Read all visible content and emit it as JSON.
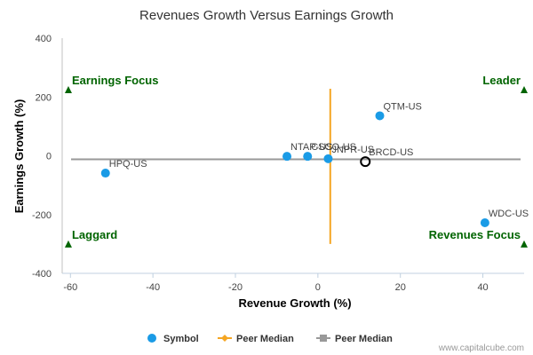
{
  "chart_data": {
    "type": "scatter",
    "title": "Revenues Growth Versus Earnings Growth",
    "xlabel": "Revenue Growth (%)",
    "ylabel": "Earnings Growth (%)",
    "xlim": [
      -62,
      50
    ],
    "ylim": [
      -400,
      400
    ],
    "xticks": [
      -60,
      -40,
      -20,
      0,
      20,
      40
    ],
    "yticks": [
      -400,
      -200,
      0,
      200,
      400
    ],
    "grid": false,
    "legend_position": "bottom",
    "series": [
      {
        "name": "Symbol",
        "color": "#1a9be6",
        "points": [
          {
            "label": "HPQ-US",
            "x": -51.5,
            "y": -59
          },
          {
            "label": "NTAP-US",
            "x": -7.5,
            "y": -2
          },
          {
            "label": "CSCO-US",
            "x": -2.5,
            "y": -2
          },
          {
            "label": "JNPR-US",
            "x": 2.5,
            "y": -10
          },
          {
            "label": "QTM-US",
            "x": 15,
            "y": 136
          },
          {
            "label": "WDC-US",
            "x": 40.5,
            "y": -228
          }
        ]
      },
      {
        "name": "Peer Median",
        "color": "#f5a623",
        "line": {
          "orientation": "vertical",
          "x": 3,
          "y_from": 228,
          "y_to": -300
        }
      },
      {
        "name": "Peer Median",
        "color": "#999999",
        "line": {
          "orientation": "horizontal",
          "y": -12
        }
      }
    ],
    "highlight": {
      "label": "BRCD-US",
      "x": 11.5,
      "y": -20
    },
    "quadrants": [
      {
        "label": "Earnings Focus",
        "marker_x": -60.5,
        "marker_y": 225
      },
      {
        "label": "Leader",
        "marker_x": 50,
        "marker_y": 225
      },
      {
        "label": "Laggard",
        "marker_x": -60.5,
        "marker_y": -300
      },
      {
        "label": "Revenues Focus",
        "marker_x": 50,
        "marker_y": -300
      }
    ],
    "quadrant_color": "#006400"
  },
  "credit": "www.capitalcube.com"
}
